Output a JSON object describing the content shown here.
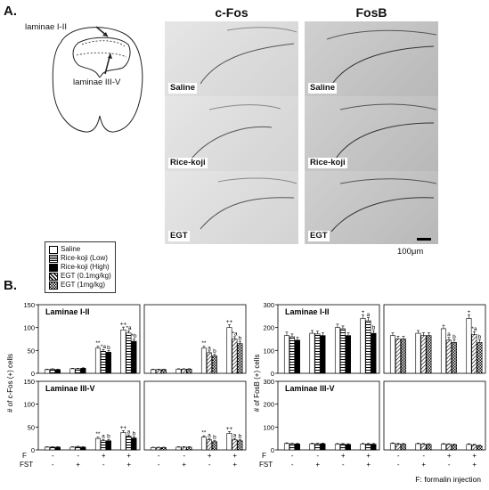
{
  "panel_a": {
    "letter": "A.",
    "col_headers": [
      "c-Fos",
      "FosB"
    ],
    "row_labels": [
      "Saline",
      "Rice-koji",
      "EGT"
    ],
    "schematic_labels": [
      "laminae I-II",
      "laminae III-V"
    ],
    "scale_bar": "100μm"
  },
  "panel_b": {
    "letter": "B.",
    "footnote": "F: formalin injection",
    "row_f_label": "F",
    "row_fst_label": "FST",
    "f_row": [
      "-",
      "-",
      "+",
      "+"
    ],
    "fst_row": [
      "-",
      "+",
      "-",
      "+"
    ],
    "legend": [
      {
        "label": "Saline",
        "fill": "white"
      },
      {
        "label": "Rice-koji (Low)",
        "fill": "hstripe"
      },
      {
        "label": "Rice-koji (High)",
        "fill": "black"
      },
      {
        "label": "EGT (0.1mg/kg)",
        "fill": "diag"
      },
      {
        "label": "EGT (1mg/kg)",
        "fill": "check"
      }
    ]
  },
  "chart_data": [
    {
      "type": "bar",
      "title": "Laminae I-II",
      "ylabel": "# of c-Fos (+) cells",
      "ylim": [
        0,
        150
      ],
      "yticks": [
        0,
        50,
        100,
        150
      ],
      "groups": 4,
      "series_count": 3,
      "series": [
        "Saline",
        "Rice-koji (Low)",
        "Rice-koji (High)"
      ],
      "values": [
        [
          8,
          9,
          8
        ],
        [
          10,
          10,
          11
        ],
        [
          55,
          48,
          46
        ],
        [
          95,
          88,
          70
        ]
      ],
      "errors": [
        [
          1,
          1,
          1
        ],
        [
          1,
          1,
          1
        ],
        [
          4,
          4,
          4
        ],
        [
          6,
          5,
          5
        ]
      ],
      "annotations": [
        [
          null,
          null,
          null
        ],
        [
          null,
          null,
          null
        ],
        [
          "**",
          "*a",
          "b"
        ],
        [
          "++",
          "*a",
          "*b"
        ]
      ]
    },
    {
      "type": "bar",
      "title": "",
      "ylabel": "",
      "ylim": [
        0,
        150
      ],
      "yticks": [],
      "groups": 4,
      "series_count": 3,
      "series": [
        "Saline",
        "EGT (0.1mg/kg)",
        "EGT (1mg/kg)"
      ],
      "values": [
        [
          8,
          8,
          8
        ],
        [
          9,
          9,
          9
        ],
        [
          55,
          45,
          38
        ],
        [
          100,
          75,
          65
        ]
      ],
      "errors": [
        [
          1,
          1,
          1
        ],
        [
          1,
          1,
          1
        ],
        [
          4,
          4,
          4
        ],
        [
          6,
          5,
          5
        ]
      ],
      "annotations": [
        [
          null,
          null,
          null
        ],
        [
          null,
          null,
          null
        ],
        [
          "**",
          "a",
          "b"
        ],
        [
          "++",
          "*a",
          "b"
        ]
      ]
    },
    {
      "type": "bar",
      "title": "Laminae III-V",
      "ylabel": "",
      "ylim": [
        0,
        150
      ],
      "yticks": [
        0,
        50,
        100,
        150
      ],
      "groups": 4,
      "series_count": 3,
      "series": [
        "Saline",
        "Rice-koji (Low)",
        "Rice-koji (High)"
      ],
      "values": [
        [
          6,
          6,
          6
        ],
        [
          6,
          7,
          6
        ],
        [
          25,
          20,
          20
        ],
        [
          38,
          30,
          26
        ]
      ],
      "errors": [
        [
          1,
          1,
          1
        ],
        [
          1,
          1,
          1
        ],
        [
          3,
          3,
          3
        ],
        [
          4,
          3,
          3
        ]
      ],
      "annotations": [
        [
          null,
          null,
          null
        ],
        [
          null,
          null,
          null
        ],
        [
          "**",
          "a",
          "b"
        ],
        [
          "++",
          "a",
          "b"
        ]
      ]
    },
    {
      "type": "bar",
      "title": "",
      "ylabel": "",
      "ylim": [
        0,
        150
      ],
      "yticks": [],
      "groups": 4,
      "series_count": 3,
      "series": [
        "Saline",
        "EGT (0.1mg/kg)",
        "EGT (1mg/kg)"
      ],
      "values": [
        [
          5,
          5,
          5
        ],
        [
          6,
          6,
          6
        ],
        [
          28,
          22,
          18
        ],
        [
          36,
          22,
          20
        ]
      ],
      "errors": [
        [
          1,
          1,
          1
        ],
        [
          1,
          1,
          1
        ],
        [
          3,
          3,
          3
        ],
        [
          4,
          3,
          3
        ]
      ],
      "annotations": [
        [
          null,
          null,
          null
        ],
        [
          null,
          null,
          null
        ],
        [
          "**",
          "a",
          "b"
        ],
        [
          "++",
          "a",
          "b"
        ]
      ]
    },
    {
      "type": "bar",
      "title": "Laminae I-II",
      "ylabel": "# of FosB (+) cells",
      "ylim": [
        0,
        300
      ],
      "yticks": [
        0,
        100,
        200,
        300
      ],
      "groups": 4,
      "series_count": 3,
      "series": [
        "Saline",
        "Rice-koji (Low)",
        "Rice-koji (High)"
      ],
      "values": [
        [
          165,
          160,
          145
        ],
        [
          175,
          172,
          165
        ],
        [
          200,
          195,
          165
        ],
        [
          240,
          230,
          175
        ]
      ],
      "errors": [
        [
          15,
          12,
          12
        ],
        [
          12,
          12,
          12
        ],
        [
          15,
          12,
          12
        ],
        [
          15,
          14,
          12
        ]
      ],
      "annotations": [
        [
          null,
          null,
          null
        ],
        [
          null,
          null,
          null
        ],
        [
          null,
          null,
          null
        ],
        [
          "+",
          "a",
          "b"
        ]
      ]
    },
    {
      "type": "bar",
      "title": "",
      "ylabel": "",
      "ylim": [
        0,
        300
      ],
      "yticks": [],
      "groups": 4,
      "series_count": 3,
      "series": [
        "Saline",
        "EGT (0.1mg/kg)",
        "EGT (1mg/kg)"
      ],
      "values": [
        [
          165,
          150,
          150
        ],
        [
          175,
          165,
          165
        ],
        [
          195,
          145,
          135
        ],
        [
          240,
          170,
          135
        ]
      ],
      "errors": [
        [
          12,
          12,
          12
        ],
        [
          12,
          12,
          12
        ],
        [
          15,
          12,
          12
        ],
        [
          15,
          12,
          12
        ]
      ],
      "annotations": [
        [
          null,
          null,
          null
        ],
        [
          null,
          null,
          null
        ],
        [
          null,
          "a",
          "b"
        ],
        [
          "+",
          "*a",
          "b"
        ]
      ]
    },
    {
      "type": "bar",
      "title": "Laminae III-V",
      "ylabel": "",
      "ylim": [
        0,
        300
      ],
      "yticks": [
        0,
        100,
        200,
        300
      ],
      "groups": 4,
      "series_count": 3,
      "series": [
        "Saline",
        "Rice-koji (Low)",
        "Rice-koji (High)"
      ],
      "values": [
        [
          28,
          27,
          26
        ],
        [
          27,
          27,
          27
        ],
        [
          25,
          25,
          24
        ],
        [
          26,
          26,
          25
        ]
      ],
      "errors": [
        [
          3,
          3,
          3
        ],
        [
          3,
          3,
          3
        ],
        [
          3,
          3,
          3
        ],
        [
          3,
          3,
          3
        ]
      ],
      "annotations": [
        [
          null,
          null,
          null
        ],
        [
          null,
          null,
          null
        ],
        [
          null,
          null,
          null
        ],
        [
          null,
          null,
          null
        ]
      ]
    },
    {
      "type": "bar",
      "title": "",
      "ylabel": "",
      "ylim": [
        0,
        300
      ],
      "yticks": [],
      "groups": 4,
      "series_count": 3,
      "series": [
        "Saline",
        "EGT (0.1mg/kg)",
        "EGT (1mg/kg)"
      ],
      "values": [
        [
          28,
          26,
          25
        ],
        [
          27,
          25,
          24
        ],
        [
          25,
          24,
          23
        ],
        [
          24,
          22,
          18
        ]
      ],
      "errors": [
        [
          3,
          3,
          3
        ],
        [
          3,
          3,
          3
        ],
        [
          3,
          3,
          3
        ],
        [
          3,
          3,
          3
        ]
      ],
      "annotations": [
        [
          null,
          null,
          null
        ],
        [
          null,
          null,
          null
        ],
        [
          null,
          null,
          null
        ],
        [
          null,
          null,
          null
        ]
      ]
    }
  ]
}
